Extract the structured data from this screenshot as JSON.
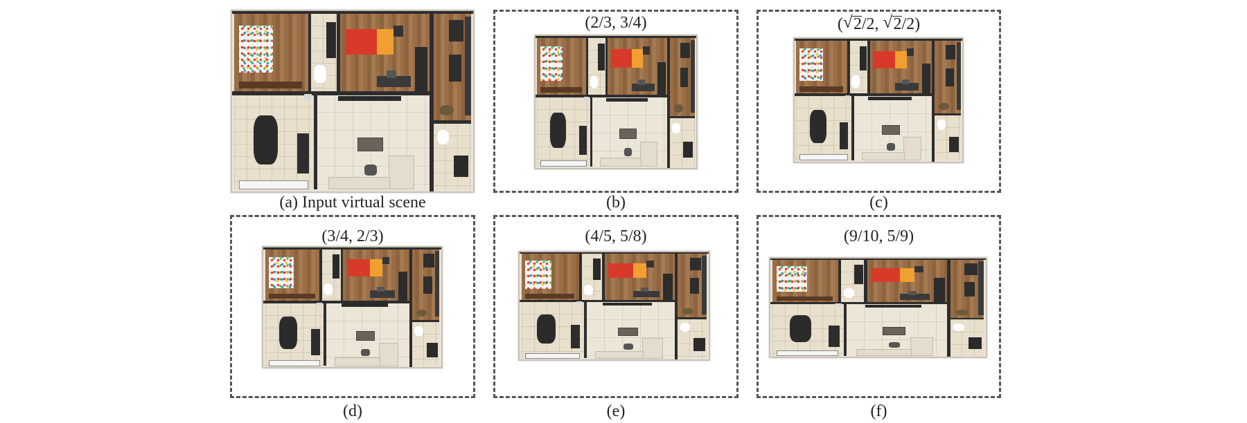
{
  "figure": {
    "panels": [
      {
        "id": "a",
        "caption": "(a) Input virtual scene",
        "title": null,
        "dashed": false
      },
      {
        "id": "b",
        "caption": "(b)",
        "title": "(2/3, 3/4)",
        "dashed": true
      },
      {
        "id": "c",
        "caption": "(c)",
        "title_parts": {
          "open": "(",
          "rad1": "2",
          "mid": "/2, ",
          "rad2": "2",
          "close": "/2)"
        },
        "dashed": true
      },
      {
        "id": "d",
        "caption": "(d)",
        "title": "(3/4, 2/3)",
        "dashed": true
      },
      {
        "id": "e",
        "caption": "(e)",
        "title": "(4/5, 5/8)",
        "dashed": true
      },
      {
        "id": "f",
        "caption": "(f)",
        "title": "(9/10, 5/9)",
        "dashed": true
      }
    ],
    "colors": {
      "dash_border": "#555555",
      "wood_floor": "#9a6e47",
      "tile_floor": "#e8dfcc",
      "wall": "#2d2d2d",
      "bed_red": "#d83a2a",
      "bed_orange": "#f0a030"
    },
    "icons": [
      "bed-icon",
      "dining-table-icon",
      "sofa-icon",
      "toilet-icon",
      "coffee-table-icon"
    ]
  }
}
